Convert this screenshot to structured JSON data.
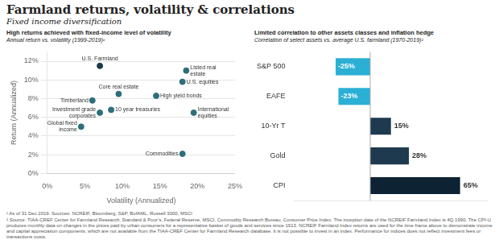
{
  "title": "Farmland returns, volatility & correlations",
  "subtitle": "Fixed income diversification",
  "annotations": [
    "¹ As of 31 Dec 2019. Sources: NCREIF, Bloomberg, S&P, BofAML, Russell 3000, MSCI",
    "² Source: TIAA-CREF Center for Farmland Research, Standard & Poor’s, Federal Reserve, MSCI, Commodity Research Bureau, Consumer Price Index. The inception date of the NCREIF Farmland Index is 4Q 1990. The CPI-U produces monthly data on changes in the prices paid by urban consumers for a representative basket of goods and services since 1913. NCREIF Farmland Index returns are used for the time frame above to demonstrate income and capital appreciation components, which are not available from the TIAA-CREF Center for Farmland Research database. It is not possible to invest in an index. Performance for indices does not reflect investment fees or transactions costs."
  ],
  "chart_data": [
    {
      "type": "scatter",
      "title": "High returns achieved with fixed-income level of volatility",
      "subtitle": "Annual return vs. volatility (1999-2019)¹",
      "x": [
        7.0,
        18.5,
        18.0,
        9.5,
        14.5,
        6.0,
        7.0,
        8.5,
        19.5,
        4.5,
        18.0
      ],
      "values": [
        11.5,
        11.0,
        9.8,
        8.5,
        8.3,
        7.8,
        6.5,
        6.8,
        6.5,
        5.0,
        2.1
      ],
      "point_labels": [
        "U.S. Farmland",
        "Listed real\nestate",
        "U.S. equities",
        "Core real estate",
        "High yield bonds",
        "Timberland",
        "Investment grade\ncorporates",
        "10 year treasuries",
        "International\nequities",
        "Global fixed\nincome",
        "Commodities"
      ],
      "colors": [
        "#1a3a4a",
        "#2d6e7a",
        "#2d6e7a",
        "#2d6e7a",
        "#2d6e7a",
        "#2d6e7a",
        "#2d6e7a",
        "#2d6e7a",
        "#2d6e7a",
        "#2d6e7a",
        "#2d6e7a"
      ],
      "xlabel": "Volatility (Annualized)",
      "ylabel": "Return (Annualized)",
      "xlim": [
        0,
        25
      ],
      "xticks": [
        {
          "value": 0,
          "label": "0%"
        },
        {
          "value": 5,
          "label": "5%"
        },
        {
          "value": 10,
          "label": "10%"
        },
        {
          "value": 15,
          "label": "15%"
        },
        {
          "value": 20,
          "label": "20%"
        },
        {
          "value": 25,
          "label": "25%"
        }
      ],
      "ylim": [
        0,
        13
      ],
      "yticks": [
        {
          "value": 0,
          "label": "0%"
        },
        {
          "value": 2,
          "label": "2%"
        },
        {
          "value": 4,
          "label": "4%"
        },
        {
          "value": 6,
          "label": "6%"
        },
        {
          "value": 8,
          "label": "8%"
        },
        {
          "value": 10,
          "label": "10%"
        },
        {
          "value": 12,
          "label": "12%"
        }
      ],
      "grid": "y"
    },
    {
      "type": "bar",
      "orientation": "horizontal",
      "title": "Limited correlation to other assets classes and inflation hedge",
      "subtitle": "Correlation of select assets vs. average U.S. farmland (1970-2019)²",
      "categories": [
        "S&P 500",
        "EAFE",
        "10-Yr T",
        "Gold",
        "CPI"
      ],
      "values": [
        -25,
        -23,
        15,
        28,
        65
      ],
      "value_labels": [
        "-25%",
        "-23%",
        "15%",
        "28%",
        "65%"
      ],
      "colors": [
        "#2bafd4",
        "#2bafd4",
        "#1e3a4f",
        "#1e3a4f",
        "#0d2233"
      ],
      "xlim": [
        -55,
        85
      ],
      "data_labels": true,
      "tick_labels": "y",
      "grid": false
    }
  ]
}
